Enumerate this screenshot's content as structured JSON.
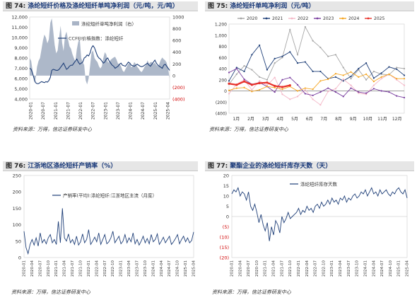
{
  "panels": [
    {
      "fig_label": "图 74:",
      "title": "涤纶短纤价格及涤纶短纤单吨净利润（元/吨，元/吨）",
      "source": "资料来源：万得，信达证券研发中心"
    },
    {
      "fig_label": "图 75:",
      "title": "涤纶短纤单吨净利润（元/吨）",
      "source": "资料来源：万得，信达证券研发中心"
    },
    {
      "fig_label": "图 76:",
      "title": "江浙地区涤纶短纤产销率（%）",
      "source": "资料来源：万得，信达证券研发中心"
    },
    {
      "fig_label": "图 77:",
      "title": "聚酯企业的涤纶短纤库存天数（天）",
      "source": "资料来源：万得，信达证券研发中心"
    }
  ],
  "chart_data": [
    {
      "type": "area",
      "left_axis": {
        "ylim": [
          4000,
          12000
        ],
        "ticks": [
          "4,000",
          "5,000",
          "6,000",
          "7,000",
          "8,000",
          "9,000",
          "10,000",
          "11,000",
          "12,000"
        ]
      },
      "right_axis": {
        "ylim": [
          -400,
          1000
        ],
        "ticks": [
          "(400)",
          "(200)",
          "0",
          "200",
          "400",
          "600",
          "800",
          "1000"
        ]
      },
      "x_ticks": [
        "2020-01",
        "2020-07",
        "2021-01",
        "2021-07",
        "2022-01",
        "2022-07",
        "2023-01",
        "2023-07",
        "2024-01",
        "2024-07",
        "2025-01",
        "2025-04"
      ],
      "series": [
        {
          "name": "涤纶短纤单吨净利润（右）",
          "axis": "right",
          "color": "#a9b4c6",
          "values": [
            300,
            250,
            80,
            -120,
            -60,
            150,
            250,
            300,
            450,
            600,
            700,
            650,
            550,
            620,
            900,
            980,
            760,
            520,
            380,
            430,
            650,
            850,
            560,
            420,
            680,
            750,
            620,
            500,
            460,
            370,
            300,
            240,
            450,
            580,
            620,
            300,
            230,
            180,
            -80,
            -150,
            -50,
            170,
            390,
            430,
            300,
            260,
            230,
            160,
            120,
            160,
            300,
            400,
            360,
            230,
            220,
            270,
            290,
            310,
            320,
            270,
            200,
            200,
            160,
            90,
            60,
            110,
            160,
            200,
            210,
            140,
            170,
            230,
            200,
            150,
            120,
            80,
            60,
            100,
            150,
            180,
            260,
            200,
            230,
            230,
            200,
            220,
            180,
            160,
            200,
            270,
            310,
            280,
            260,
            220,
            120,
            -50
          ]
        },
        {
          "name": "CCFEI价格指数：涤纶短纤",
          "axis": "left",
          "color": "#1f3f78",
          "values": [
            7000,
            6900,
            6500,
            6000,
            5600,
            5500,
            5500,
            5600,
            5700,
            5650,
            5600,
            5700,
            5650,
            5800,
            6100,
            6800,
            6900,
            6850,
            6800,
            6800,
            6900,
            7100,
            7300,
            7500,
            7200,
            6900,
            7000,
            7200,
            7300,
            7300,
            7500,
            7700,
            7900,
            7600,
            7400,
            7500,
            7600,
            8000,
            8100,
            8300,
            8200,
            8500,
            9000,
            9200,
            9000,
            8600,
            8200,
            8000,
            7900,
            7700,
            7500,
            7600,
            7900,
            8000,
            7700,
            7500,
            7300,
            7200,
            7000,
            7100,
            7200,
            7400,
            7500,
            7300,
            7250,
            7200,
            7400,
            7600,
            7500,
            7300,
            7250,
            7200,
            7300,
            7400,
            7300,
            7200,
            7150,
            7200,
            7300,
            7400,
            7500,
            7300,
            7200,
            7400,
            7600,
            7800,
            7500,
            7300,
            7200,
            7100,
            7000,
            7300,
            7400,
            7200,
            7000,
            6800
          ]
        }
      ]
    },
    {
      "type": "line",
      "ylim": [
        -400,
        1200
      ],
      "y_ticks": [
        "(400)",
        "(200)",
        "0",
        "200",
        "400",
        "600",
        "800",
        "1,000",
        "1,200"
      ],
      "x_ticks": [
        "1月",
        "2月",
        "3月",
        "4月",
        "5月",
        "6月",
        "7月",
        "8月",
        "9月",
        "10月",
        "11月",
        "12月"
      ],
      "series": [
        {
          "name": "2020",
          "color": "#a6a6a6",
          "values": [
            120,
            300,
            450,
            380,
            250,
            200,
            500,
            600,
            1100,
            650,
            1150,
            900,
            780,
            620,
            650,
            420,
            220,
            380,
            200,
            350,
            300,
            290,
            420,
            400
          ]
        },
        {
          "name": "2021",
          "color": "#1f3f78",
          "values": [
            180,
            420,
            350,
            650,
            820,
            380,
            580,
            620,
            700,
            500,
            520,
            350,
            350,
            220,
            250,
            180,
            260,
            400,
            500,
            230,
            320,
            430,
            390,
            280
          ]
        },
        {
          "name": "2022",
          "color": "#f4b8c8",
          "values": [
            -50,
            120,
            200,
            20,
            180,
            100,
            240,
            -60,
            -150,
            -100,
            20,
            -150,
            -250,
            -10,
            40,
            210,
            100,
            -40,
            -60,
            100,
            220,
            300,
            200,
            100
          ]
        },
        {
          "name": "2023",
          "color": "#7a3fa0",
          "values": [
            330,
            400,
            210,
            120,
            150,
            80,
            -20,
            200,
            240,
            110,
            -50,
            -80,
            -20,
            50,
            -20,
            -100,
            50,
            -20,
            -40,
            40,
            0,
            -20,
            -90,
            -120
          ]
        },
        {
          "name": "2024",
          "color": "#f5a623",
          "values": [
            10,
            50,
            60,
            -10,
            20,
            80,
            60,
            30,
            80,
            0,
            50,
            30,
            180,
            210,
            310,
            280,
            340,
            250,
            300,
            170,
            250,
            300,
            220,
            220
          ]
        },
        {
          "name": "2025",
          "color": "#e8322b",
          "values": [
            130,
            110,
            170,
            110,
            140,
            150,
            90,
            70,
            100
          ]
        }
      ]
    },
    {
      "type": "line",
      "ylim": [
        0,
        250
      ],
      "y_ticks": [
        "0",
        "50",
        "100",
        "150",
        "200",
        "250"
      ],
      "x_ticks": [
        "2020-01",
        "2020-04",
        "2020-07",
        "2020-10",
        "2021-01",
        "2021-04",
        "2021-07",
        "2021-10",
        "2022-01",
        "2022-04",
        "2022-07",
        "2022-10",
        "2023-01",
        "2023-04",
        "2023-07",
        "2023-10",
        "2024-01",
        "2024-04",
        "2024-07",
        "2024-10",
        "2025-01",
        "2025-04"
      ],
      "series": [
        {
          "name": "产销率(平均):涤纶短纤:江浙地区主流（月度）",
          "color": "#1f3f78",
          "values": [
            80,
            30,
            12,
            40,
            55,
            38,
            60,
            35,
            75,
            45,
            55,
            42,
            60,
            70,
            45,
            55,
            40,
            110,
            45,
            150,
            60,
            50,
            72,
            45,
            55,
            40,
            65,
            38,
            48,
            72,
            45,
            55,
            85,
            40,
            50,
            62,
            48,
            75,
            40,
            55,
            70,
            42,
            48,
            60,
            80,
            45,
            55,
            65,
            42,
            50,
            70,
            45,
            60,
            48,
            75,
            42,
            55,
            38,
            50,
            65,
            45,
            58,
            42,
            70,
            48,
            55,
            72,
            40,
            50,
            62,
            45,
            55,
            65,
            40,
            48,
            58,
            70,
            42,
            55,
            65,
            48,
            60,
            45,
            52,
            78
          ]
        }
      ]
    },
    {
      "type": "line",
      "ylim": [
        -20,
        20
      ],
      "y_ticks": [
        "(20)",
        "(15)",
        "(10)",
        "(5)",
        "0",
        "5",
        "10",
        "15",
        "20"
      ],
      "x_ticks": [
        "2020-01",
        "2020-04",
        "2020-07",
        "2020-10",
        "2021-01",
        "2021-04",
        "2021-07",
        "2021-10",
        "2022-01",
        "2022-04",
        "2022-07",
        "2022-10",
        "2023-01",
        "2023-04",
        "2023-07",
        "2023-10",
        "2024-01",
        "2024-04",
        "2024-07",
        "2024-10",
        "2025-01",
        "2025-04"
      ],
      "series": [
        {
          "name": "涤纶短纤库存天数",
          "color": "#1f3f78",
          "values": [
            11,
            13,
            12,
            14,
            10,
            12,
            11,
            8,
            12,
            5,
            3,
            6,
            2,
            -3,
            1,
            -4,
            -7,
            -3,
            -12,
            -5,
            -9,
            -2,
            -4,
            -8,
            0,
            -3,
            -1,
            2,
            -1,
            0,
            1,
            2,
            4,
            1,
            3,
            2,
            5,
            3,
            4,
            2,
            5,
            6,
            4,
            7,
            5,
            6,
            8,
            6,
            9,
            7,
            8,
            6,
            9,
            8,
            10,
            7,
            9,
            8,
            10,
            11,
            9,
            10,
            12,
            11,
            13,
            10,
            12,
            14,
            11,
            12,
            10,
            13,
            11,
            12,
            13,
            11,
            10,
            12,
            11,
            13,
            14,
            12,
            11,
            13,
            9
          ]
        }
      ]
    }
  ]
}
